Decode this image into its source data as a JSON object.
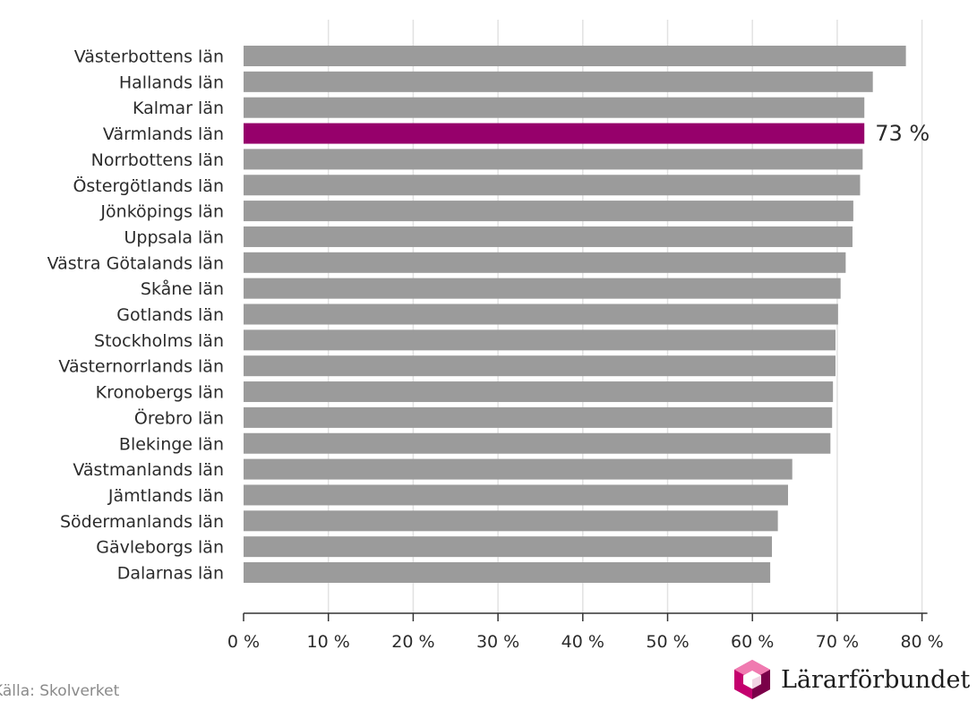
{
  "chart_data": {
    "type": "bar",
    "orientation": "horizontal",
    "categories": [
      "Västerbottens län",
      "Hallands län",
      "Kalmar län",
      "Värmlands län",
      "Norrbottens län",
      "Östergötlands län",
      "Jönköpings län",
      "Uppsala län",
      "Västra Götalands län",
      "Skåne län",
      "Gotlands län",
      "Stockholms län",
      "Västernorrlands län",
      "Kronobergs län",
      "Örebro län",
      "Blekinge län",
      "Västmanlands län",
      "Jämtlands län",
      "Södermanlands län",
      "Gävleborgs län",
      "Dalarnas län"
    ],
    "values": [
      78.1,
      74.2,
      73.2,
      73.2,
      73.0,
      72.7,
      71.9,
      71.8,
      71.0,
      70.4,
      70.1,
      69.8,
      69.8,
      69.5,
      69.4,
      69.2,
      64.7,
      64.2,
      63.0,
      62.3,
      62.1
    ],
    "highlight_index": 3,
    "highlight_label": "73 %",
    "xlim": [
      0,
      80
    ],
    "xticks": [
      0,
      10,
      20,
      30,
      40,
      50,
      60,
      70,
      80
    ],
    "xtick_labels": [
      "0 %",
      "10 %",
      "20 %",
      "30 %",
      "40 %",
      "50 %",
      "60 %",
      "70 %",
      "80 %"
    ],
    "title": "",
    "xlabel": "",
    "ylabel": "",
    "grid": "vertical",
    "colors": {
      "bar": "#9b9b9b",
      "highlight": "#96006b",
      "grid": "#e2e2e2",
      "axis": "#333333"
    }
  },
  "footer": {
    "source": "Källa: Skolverket",
    "logo_text": "Lärarförbundet",
    "logo_icon": "lararforbundet-cube-logo"
  }
}
